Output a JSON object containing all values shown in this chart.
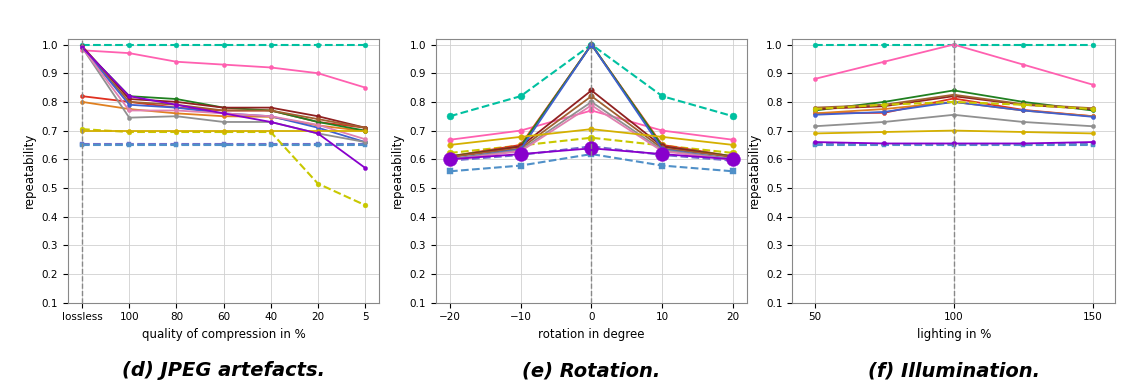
{
  "subplot_d": {
    "xlabel": "quality of compression in %",
    "ylabel": "repeatability",
    "caption": "(d) JPEG artefacts.",
    "vline_x": 0,
    "xtick_labels": [
      "lossless",
      "100",
      "80",
      "60",
      "40",
      "20",
      "5"
    ],
    "xtick_pos": [
      0,
      1,
      2,
      3,
      4,
      5,
      6
    ],
    "xlim": [
      -0.3,
      6.3
    ],
    "ylim": [
      0.1,
      1.02
    ],
    "yticks": [
      0.1,
      0.2,
      0.3,
      0.4,
      0.5,
      0.6,
      0.7,
      0.8,
      0.9,
      1.0
    ],
    "lines": [
      {
        "color": "#00C0A0",
        "linestyle": "--",
        "marker": "o",
        "ms": 3.5,
        "lw": 1.5,
        "y": [
          1.0,
          1.0,
          1.0,
          1.0,
          1.0,
          1.0,
          1.0
        ]
      },
      {
        "color": "#7070CC",
        "linestyle": "--",
        "marker": "s",
        "ms": 3.5,
        "lw": 1.5,
        "y": [
          0.654,
          0.654,
          0.654,
          0.654,
          0.654,
          0.654,
          0.654
        ]
      },
      {
        "color": "#5090C8",
        "linestyle": "--",
        "marker": "s",
        "ms": 3.5,
        "lw": 1.5,
        "y": [
          0.648,
          0.648,
          0.648,
          0.648,
          0.648,
          0.648,
          0.648
        ]
      },
      {
        "color": "#C8C800",
        "linestyle": "--",
        "marker": "o",
        "ms": 3.5,
        "lw": 1.5,
        "y": [
          0.705,
          0.695,
          0.695,
          0.695,
          0.695,
          0.515,
          0.44
        ]
      },
      {
        "color": "#FF60B0",
        "linestyle": "-",
        "marker": "o",
        "ms": 3,
        "lw": 1.3,
        "y": [
          0.98,
          0.97,
          0.94,
          0.93,
          0.92,
          0.9,
          0.85
        ]
      },
      {
        "color": "#E03020",
        "linestyle": "-",
        "marker": "o",
        "ms": 3,
        "lw": 1.3,
        "y": [
          0.82,
          0.8,
          0.78,
          0.77,
          0.77,
          0.73,
          0.71
        ]
      },
      {
        "color": "#E08020",
        "linestyle": "-",
        "marker": "o",
        "ms": 3,
        "lw": 1.3,
        "y": [
          0.8,
          0.775,
          0.76,
          0.75,
          0.748,
          0.718,
          0.698
        ]
      },
      {
        "color": "#208020",
        "linestyle": "-",
        "marker": "o",
        "ms": 3,
        "lw": 1.3,
        "y": [
          0.99,
          0.82,
          0.81,
          0.78,
          0.77,
          0.73,
          0.7
        ]
      },
      {
        "color": "#902020",
        "linestyle": "-",
        "marker": "o",
        "ms": 3,
        "lw": 1.3,
        "y": [
          0.995,
          0.81,
          0.8,
          0.78,
          0.78,
          0.75,
          0.71
        ]
      },
      {
        "color": "#A06030",
        "linestyle": "-",
        "marker": "o",
        "ms": 3,
        "lw": 1.3,
        "y": [
          0.99,
          0.8,
          0.79,
          0.77,
          0.77,
          0.74,
          0.71
        ]
      },
      {
        "color": "#4060D0",
        "linestyle": "-",
        "marker": "o",
        "ms": 3,
        "lw": 1.3,
        "y": [
          0.99,
          0.79,
          0.78,
          0.76,
          0.75,
          0.71,
          0.66
        ]
      },
      {
        "color": "#909090",
        "linestyle": "-",
        "marker": "o",
        "ms": 3,
        "lw": 1.3,
        "y": [
          0.99,
          0.745,
          0.75,
          0.73,
          0.73,
          0.69,
          0.66
        ]
      },
      {
        "color": "#E080B0",
        "linestyle": "-",
        "marker": "o",
        "ms": 3,
        "lw": 1.3,
        "y": [
          0.99,
          0.77,
          0.77,
          0.76,
          0.75,
          0.72,
          0.67
        ]
      },
      {
        "color": "#D4B000",
        "linestyle": "-",
        "marker": "o",
        "ms": 3,
        "lw": 1.3,
        "y": [
          0.7,
          0.7,
          0.7,
          0.7,
          0.7,
          0.7,
          0.7
        ]
      },
      {
        "color": "#8800CC",
        "linestyle": "-",
        "marker": "o",
        "ms": 3,
        "lw": 1.3,
        "y": [
          0.99,
          0.82,
          0.79,
          0.76,
          0.73,
          0.69,
          0.57
        ]
      }
    ]
  },
  "subplot_e": {
    "xlabel": "rotation in degree",
    "ylabel": "repeatability",
    "caption": "(e) Rotation.",
    "vline_x": 0,
    "xlim": [
      -22,
      22
    ],
    "ylim": [
      0.1,
      1.02
    ],
    "yticks": [
      0.1,
      0.2,
      0.3,
      0.4,
      0.5,
      0.6,
      0.7,
      0.8,
      0.9,
      1.0
    ],
    "xticks": [
      -20,
      -10,
      0,
      10,
      20
    ],
    "x": [
      -20,
      -10,
      0,
      10,
      20
    ],
    "lines": [
      {
        "color": "#00C0A0",
        "linestyle": "--",
        "marker": "o",
        "ms": 5,
        "lw": 1.5,
        "y": [
          0.75,
          0.82,
          1.0,
          0.82,
          0.75
        ]
      },
      {
        "color": "#7070CC",
        "linestyle": "--",
        "marker": "s",
        "ms": 5,
        "lw": 1.5,
        "y": [
          0.595,
          0.615,
          0.645,
          0.615,
          0.595
        ]
      },
      {
        "color": "#5090C8",
        "linestyle": "--",
        "marker": "s",
        "ms": 5,
        "lw": 1.5,
        "y": [
          0.558,
          0.578,
          0.618,
          0.578,
          0.558
        ]
      },
      {
        "color": "#C8C800",
        "linestyle": "--",
        "marker": "o",
        "ms": 5,
        "lw": 1.5,
        "y": [
          0.622,
          0.648,
          0.675,
          0.648,
          0.622
        ]
      },
      {
        "color": "#FF60B0",
        "linestyle": "-",
        "marker": "o",
        "ms": 4,
        "lw": 1.3,
        "y": [
          0.668,
          0.7,
          0.77,
          0.7,
          0.668
        ]
      },
      {
        "color": "#E03020",
        "linestyle": "-",
        "marker": "o",
        "ms": 4,
        "lw": 1.3,
        "y": [
          0.61,
          0.65,
          1.0,
          0.65,
          0.61
        ]
      },
      {
        "color": "#E08020",
        "linestyle": "-",
        "marker": "o",
        "ms": 4,
        "lw": 1.3,
        "y": [
          0.61,
          0.645,
          1.0,
          0.645,
          0.61
        ]
      },
      {
        "color": "#208020",
        "linestyle": "-",
        "marker": "o",
        "ms": 4,
        "lw": 1.3,
        "y": [
          0.61,
          0.645,
          1.0,
          0.645,
          0.61
        ]
      },
      {
        "color": "#902020",
        "linestyle": "-",
        "marker": "o",
        "ms": 4,
        "lw": 1.3,
        "y": [
          0.608,
          0.645,
          0.84,
          0.645,
          0.608
        ]
      },
      {
        "color": "#A06030",
        "linestyle": "-",
        "marker": "o",
        "ms": 4,
        "lw": 1.3,
        "y": [
          0.608,
          0.638,
          0.82,
          0.638,
          0.608
        ]
      },
      {
        "color": "#4060D0",
        "linestyle": "-",
        "marker": "o",
        "ms": 4,
        "lw": 1.3,
        "y": [
          0.6,
          0.635,
          1.0,
          0.635,
          0.6
        ]
      },
      {
        "color": "#909090",
        "linestyle": "-",
        "marker": "o",
        "ms": 4,
        "lw": 1.3,
        "y": [
          0.6,
          0.632,
          0.8,
          0.632,
          0.6
        ]
      },
      {
        "color": "#E080B0",
        "linestyle": "-",
        "marker": "o",
        "ms": 4,
        "lw": 1.3,
        "y": [
          0.598,
          0.628,
          0.788,
          0.628,
          0.598
        ]
      },
      {
        "color": "#D4B000",
        "linestyle": "-",
        "marker": "o",
        "ms": 4,
        "lw": 1.3,
        "y": [
          0.65,
          0.678,
          0.705,
          0.678,
          0.65
        ]
      },
      {
        "color": "#8800CC",
        "linestyle": "-",
        "marker": "o",
        "ms": 10,
        "lw": 1.3,
        "y": [
          0.6,
          0.618,
          0.638,
          0.618,
          0.6
        ]
      }
    ]
  },
  "subplot_f": {
    "xlabel": "lighting in %",
    "ylabel": "repeatability",
    "caption": "(f) Illumination.",
    "vline_x": 100,
    "xlim": [
      42,
      158
    ],
    "ylim": [
      0.1,
      1.02
    ],
    "yticks": [
      0.1,
      0.2,
      0.3,
      0.4,
      0.5,
      0.6,
      0.7,
      0.8,
      0.9,
      1.0
    ],
    "xticks": [
      50,
      100,
      150
    ],
    "x": [
      50,
      75,
      100,
      125,
      150
    ],
    "lines": [
      {
        "color": "#00C0A0",
        "linestyle": "--",
        "marker": "o",
        "ms": 3.5,
        "lw": 1.5,
        "y": [
          1.0,
          1.0,
          1.0,
          1.0,
          1.0
        ]
      },
      {
        "color": "#7070CC",
        "linestyle": "--",
        "marker": "s",
        "ms": 3.5,
        "lw": 1.5,
        "y": [
          0.652,
          0.652,
          0.652,
          0.652,
          0.652
        ]
      },
      {
        "color": "#5090C8",
        "linestyle": "--",
        "marker": "s",
        "ms": 3.5,
        "lw": 1.5,
        "y": [
          0.648,
          0.648,
          0.648,
          0.648,
          0.648
        ]
      },
      {
        "color": "#FF60B0",
        "linestyle": "-",
        "marker": "o",
        "ms": 3,
        "lw": 1.3,
        "y": [
          0.88,
          0.94,
          1.0,
          0.93,
          0.86
        ]
      },
      {
        "color": "#208020",
        "linestyle": "-",
        "marker": "o",
        "ms": 3,
        "lw": 1.3,
        "y": [
          0.77,
          0.8,
          0.84,
          0.8,
          0.77
        ]
      },
      {
        "color": "#902020",
        "linestyle": "-",
        "marker": "o",
        "ms": 3,
        "lw": 1.3,
        "y": [
          0.775,
          0.785,
          0.82,
          0.79,
          0.775
        ]
      },
      {
        "color": "#A06030",
        "linestyle": "-",
        "marker": "o",
        "ms": 3,
        "lw": 1.3,
        "y": [
          0.78,
          0.79,
          0.825,
          0.792,
          0.778
        ]
      },
      {
        "color": "#E03020",
        "linestyle": "-",
        "marker": "o",
        "ms": 3,
        "lw": 1.3,
        "y": [
          0.76,
          0.762,
          0.812,
          0.772,
          0.75
        ]
      },
      {
        "color": "#E08020",
        "linestyle": "-",
        "marker": "o",
        "ms": 3,
        "lw": 1.3,
        "y": [
          0.76,
          0.775,
          0.8,
          0.77,
          0.75
        ]
      },
      {
        "color": "#4060D0",
        "linestyle": "-",
        "marker": "o",
        "ms": 3,
        "lw": 1.3,
        "y": [
          0.755,
          0.765,
          0.8,
          0.77,
          0.748
        ]
      },
      {
        "color": "#C8C800",
        "linestyle": "--",
        "marker": "o",
        "ms": 3.5,
        "lw": 1.5,
        "y": [
          0.775,
          0.79,
          0.8,
          0.79,
          0.775
        ]
      },
      {
        "color": "#909090",
        "linestyle": "-",
        "marker": "o",
        "ms": 3,
        "lw": 1.3,
        "y": [
          0.715,
          0.73,
          0.755,
          0.73,
          0.715
        ]
      },
      {
        "color": "#D4B000",
        "linestyle": "-",
        "marker": "o",
        "ms": 3,
        "lw": 1.3,
        "y": [
          0.69,
          0.695,
          0.7,
          0.695,
          0.69
        ]
      },
      {
        "color": "#8800CC",
        "linestyle": "-",
        "marker": "o",
        "ms": 3,
        "lw": 1.3,
        "y": [
          0.66,
          0.655,
          0.655,
          0.655,
          0.66
        ]
      }
    ]
  },
  "bg_color": "#FFFFFF",
  "grid_color": "#D0D0D0",
  "caption_fontsize": 14,
  "figure_width": 11.32,
  "figure_height": 3.88,
  "dpi": 100
}
